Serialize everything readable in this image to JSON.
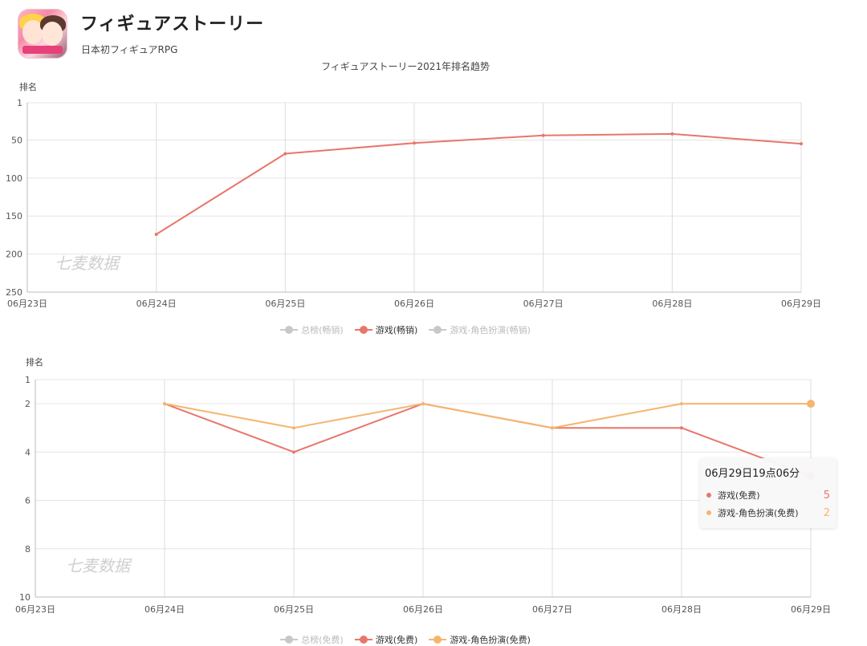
{
  "app": {
    "title": "フィギュアストーリー",
    "subtitle": "日本初フィギュアRPG",
    "icon": "app-icon-anime-figures"
  },
  "colors": {
    "red": "#e8766a",
    "orange": "#f5b56e",
    "gray": "#c8c8c8",
    "grid": "#e5e5e5"
  },
  "chart_data": [
    {
      "type": "line",
      "title": "フィギュアストーリー2021年排名趋势",
      "ylabel": "排名",
      "y_inverted": true,
      "ylim": [
        1,
        250
      ],
      "yticks": [
        "1",
        "50",
        "100",
        "150",
        "200",
        "250"
      ],
      "ytick_values": [
        1,
        50,
        100,
        150,
        200,
        250
      ],
      "categories": [
        "06月23日",
        "06月24日",
        "06月25日",
        "06月26日",
        "06月27日",
        "06月28日",
        "06月29日"
      ],
      "watermark": "七麦数据",
      "legend": [
        {
          "name": "总榜(畅销)",
          "color": "#c8c8c8",
          "active": false
        },
        {
          "name": "游戏(畅销)",
          "color": "#e8766a",
          "active": true
        },
        {
          "name": "游戏-角色扮演(畅销)",
          "color": "#c8c8c8",
          "active": false
        }
      ],
      "series": [
        {
          "name": "游戏(畅销)",
          "color": "#e8766a",
          "values": [
            null,
            174,
            68,
            54,
            44,
            42,
            55
          ]
        }
      ]
    },
    {
      "type": "line",
      "ylabel": "排名",
      "y_inverted": true,
      "ylim": [
        1,
        10
      ],
      "yticks": [
        "1",
        "2",
        "4",
        "6",
        "8",
        "10"
      ],
      "ytick_values": [
        1,
        2,
        4,
        6,
        8,
        10
      ],
      "categories": [
        "06月23日",
        "06月24日",
        "06月25日",
        "06月26日",
        "06月27日",
        "06月28日",
        "06月29日"
      ],
      "watermark": "七麦数据",
      "legend": [
        {
          "name": "总榜(免费)",
          "color": "#c8c8c8",
          "active": false
        },
        {
          "name": "游戏(免费)",
          "color": "#e8766a",
          "active": true
        },
        {
          "name": "游戏-角色扮演(免费)",
          "color": "#f5b56e",
          "active": true
        }
      ],
      "series": [
        {
          "name": "游戏(免费)",
          "color": "#e8766a",
          "values": [
            null,
            2,
            4,
            2,
            3,
            3,
            5
          ]
        },
        {
          "name": "游戏-角色扮演(免费)",
          "color": "#f5b56e",
          "values": [
            null,
            2,
            3,
            2,
            3,
            2,
            2
          ]
        }
      ],
      "tooltip": {
        "title": "06月29日19点06分",
        "rows": [
          {
            "name": "游戏(免费)",
            "value": "5",
            "color": "#e8766a"
          },
          {
            "name": "游戏-角色扮演(免费)",
            "value": "2",
            "color": "#f5b56e"
          }
        ]
      }
    }
  ]
}
